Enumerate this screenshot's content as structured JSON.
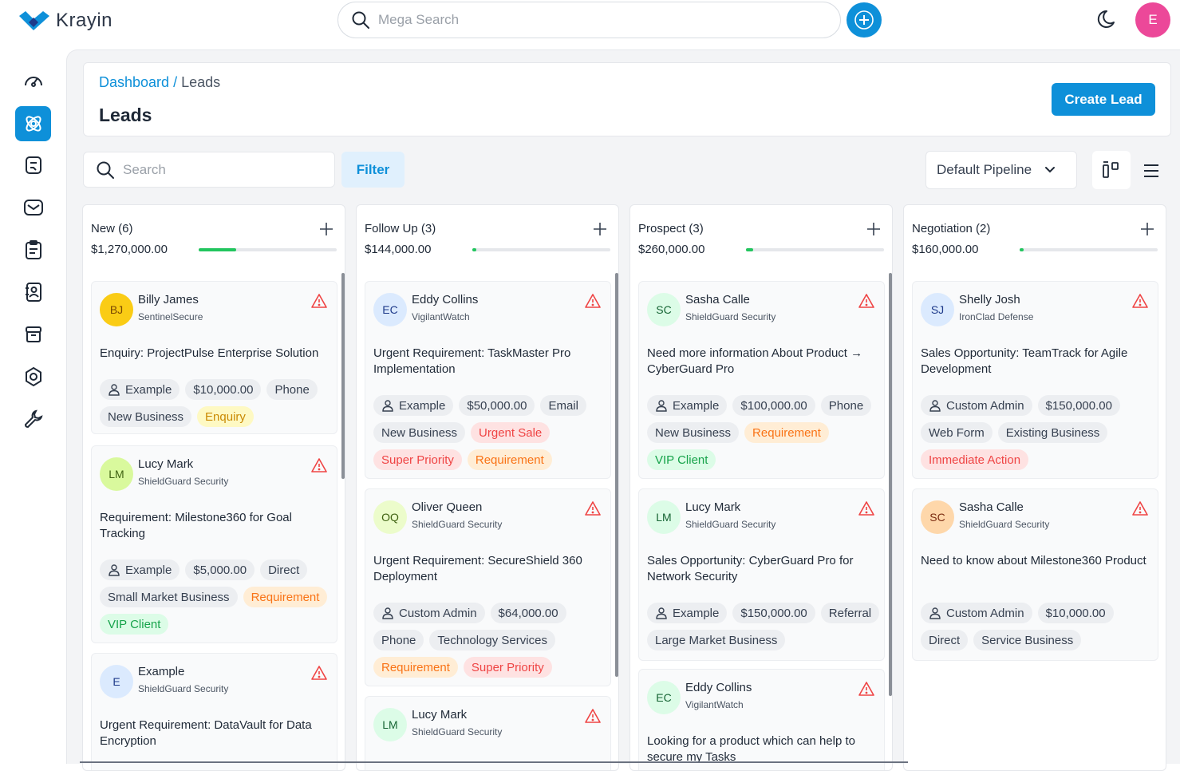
{
  "app": {
    "name": "Krayin"
  },
  "header": {
    "search_placeholder": "Mega Search",
    "user_initial": "E"
  },
  "sidebar": {
    "items": [
      {
        "icon": "dashboard-icon"
      },
      {
        "icon": "leads-icon",
        "active": true
      },
      {
        "icon": "quotes-icon"
      },
      {
        "icon": "mail-icon"
      },
      {
        "icon": "activities-icon"
      },
      {
        "icon": "contacts-icon"
      },
      {
        "icon": "products-icon"
      },
      {
        "icon": "settings-icon"
      },
      {
        "icon": "configuration-icon"
      }
    ]
  },
  "page": {
    "breadcrumb": {
      "dashboard": "Dashboard",
      "separator": " / ",
      "current": "Leads"
    },
    "title": "Leads",
    "create_button": "Create Lead"
  },
  "toolbar": {
    "search_placeholder": "Search",
    "filter": "Filter",
    "pipeline": "Default Pipeline"
  },
  "colors": {
    "accent": "#0e90d9",
    "progress": "#22c55e"
  },
  "columns": [
    {
      "title": "New (6)",
      "total": "$1,270,000.00",
      "progress": 0.27,
      "cards": [
        {
          "initials": "BJ",
          "avatar_bg": "#facc15",
          "avatar_fg": "#7c4a03",
          "name": "Billy James",
          "org": "SentinelSecure",
          "title": "Enquiry: ProjectPulse Enterprise Solution",
          "tags": [
            {
              "text": "Example",
              "user": true
            },
            {
              "text": "$10,000.00"
            },
            {
              "text": "Phone"
            },
            {
              "text": "New Business"
            },
            {
              "text": "Enquiry",
              "style": "t-yellow"
            }
          ]
        },
        {
          "initials": "LM",
          "avatar_bg": "#d9f99d",
          "avatar_fg": "#3f6212",
          "name": "Lucy Mark",
          "org": "ShieldGuard Security",
          "title": "Requirement: Milestone360 for Goal Tracking",
          "tags": [
            {
              "text": "Example",
              "user": true
            },
            {
              "text": "$5,000.00"
            },
            {
              "text": "Direct"
            },
            {
              "text": "Small Market Business"
            },
            {
              "text": "Requirement",
              "style": "t-orange"
            },
            {
              "text": "VIP Client",
              "style": "t-green"
            }
          ]
        },
        {
          "initials": "E",
          "avatar_bg": "#dbeafe",
          "avatar_fg": "#1e3a8a",
          "name": "Example",
          "org": "ShieldGuard Security",
          "title": "Urgent Requirement: DataVault for Data Encryption",
          "tags": []
        }
      ]
    },
    {
      "title": "Follow Up (3)",
      "total": "$144,000.00",
      "progress": 0.03,
      "cards": [
        {
          "initials": "EC",
          "avatar_bg": "#dbeafe",
          "avatar_fg": "#1e3a8a",
          "name": "Eddy Collins",
          "org": "VigilantWatch",
          "title": "Urgent Requirement: TaskMaster Pro Implementation",
          "tags": [
            {
              "text": "Example",
              "user": true
            },
            {
              "text": "$50,000.00"
            },
            {
              "text": "Email"
            },
            {
              "text": "New Business"
            },
            {
              "text": "Urgent Sale",
              "style": "t-red"
            },
            {
              "text": "Super Priority",
              "style": "t-red"
            },
            {
              "text": "Requirement",
              "style": "t-orange"
            }
          ]
        },
        {
          "initials": "OQ",
          "avatar_bg": "#ecfccb",
          "avatar_fg": "#3f6212",
          "name": "Oliver Queen",
          "org": "ShieldGuard Security",
          "title": "Urgent Requirement: SecureShield 360 Deployment",
          "tags": [
            {
              "text": "Custom Admin",
              "user": true
            },
            {
              "text": "$64,000.00"
            },
            {
              "text": "Phone"
            },
            {
              "text": "Technology Services"
            },
            {
              "text": "Requirement",
              "style": "t-orange"
            },
            {
              "text": "Super Priority",
              "style": "t-red"
            }
          ]
        },
        {
          "initials": "LM",
          "avatar_bg": "#dcfce7",
          "avatar_fg": "#166534",
          "name": "Lucy Mark",
          "org": "ShieldGuard Security",
          "title": "",
          "tags": []
        }
      ]
    },
    {
      "title": "Prospect (3)",
      "total": "$260,000.00",
      "progress": 0.05,
      "cards": [
        {
          "initials": "SC",
          "avatar_bg": "#dcfce7",
          "avatar_fg": "#166534",
          "name": "Sasha Calle",
          "org": "ShieldGuard Security",
          "title": "Need more information About Product → CyberGuard Pro",
          "tags": [
            {
              "text": "Example",
              "user": true
            },
            {
              "text": "$100,000.00"
            },
            {
              "text": "Phone"
            },
            {
              "text": "New Business"
            },
            {
              "text": "Requirement",
              "style": "t-orange"
            },
            {
              "text": "VIP Client",
              "style": "t-green"
            }
          ]
        },
        {
          "initials": "LM",
          "avatar_bg": "#dcfce7",
          "avatar_fg": "#166534",
          "name": "Lucy Mark",
          "org": "ShieldGuard Security",
          "title": "Sales Opportunity: CyberGuard Pro for Network Security",
          "tags": [
            {
              "text": "Example",
              "user": true
            },
            {
              "text": "$150,000.00"
            },
            {
              "text": "Referral"
            },
            {
              "text": "Large Market Business"
            }
          ]
        },
        {
          "initials": "EC",
          "avatar_bg": "#dcfce7",
          "avatar_fg": "#166534",
          "name": "Eddy Collins",
          "org": "VigilantWatch",
          "title": "Looking for a product which can help to secure my Tasks",
          "tags": []
        }
      ]
    },
    {
      "title": "Negotiation (2)",
      "total": "$160,000.00",
      "progress": 0.03,
      "cards": [
        {
          "initials": "SJ",
          "avatar_bg": "#dbeafe",
          "avatar_fg": "#1e3a8a",
          "name": "Shelly Josh",
          "org": "IronClad Defense",
          "title": "Sales Opportunity: TeamTrack for Agile Development",
          "tags": [
            {
              "text": "Custom Admin",
              "user": true
            },
            {
              "text": "$150,000.00"
            },
            {
              "text": "Web Form"
            },
            {
              "text": "Existing Business"
            },
            {
              "text": "Immediate Action",
              "style": "t-red"
            }
          ]
        },
        {
          "initials": "SC",
          "avatar_bg": "#fed7aa",
          "avatar_fg": "#7c2d12",
          "name": "Sasha Calle",
          "org": "ShieldGuard Security",
          "title": "Need to know about Milestone360 Product",
          "tags": [
            {
              "text": "Custom Admin",
              "user": true
            },
            {
              "text": "$10,000.00"
            },
            {
              "text": "Direct"
            },
            {
              "text": "Service Business"
            }
          ]
        }
      ]
    }
  ]
}
